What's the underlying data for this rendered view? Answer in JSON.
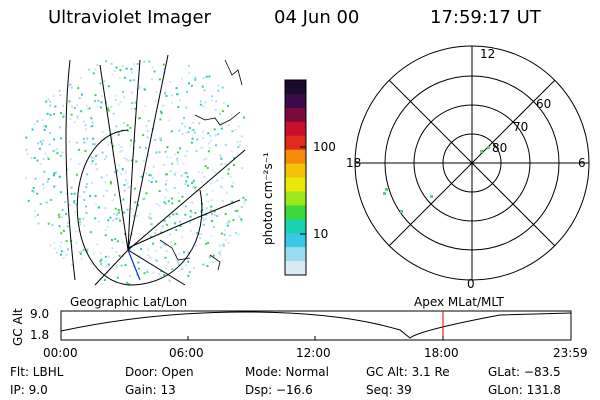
{
  "header": {
    "title": "Ultraviolet Imager",
    "date": "04 Jun 00",
    "time": "17:59:17 UT"
  },
  "colorbar": {
    "unit_label": "photon cm⁻²s⁻¹",
    "ticks": [
      "100",
      "10"
    ],
    "colors": [
      "#1a0a2e",
      "#3b0a4a",
      "#7a0a3a",
      "#c8102e",
      "#e02a1a",
      "#f58a0a",
      "#f5c20a",
      "#e8e80a",
      "#9ce81a",
      "#3ed83a",
      "#1ad2b0",
      "#3ac8e8",
      "#9cdcf0",
      "#d8ecf4"
    ]
  },
  "left_panel": {
    "label": "Geographic Lat/Lon"
  },
  "polar_plot": {
    "label": "Apex MLat/MLT",
    "mlt_labels": [
      "12",
      "18",
      "6",
      "0"
    ],
    "lat_labels": [
      "60",
      "70",
      "80"
    ]
  },
  "altitude_strip": {
    "axis_label": "GC Alt",
    "y_ticks": [
      "9.0",
      "1.8"
    ],
    "x_ticks": [
      "00:00",
      "06:00",
      "12:00",
      "18:00",
      "23:59"
    ],
    "marker_color": "#e00000"
  },
  "info": {
    "flt": "Flt:  LBHL",
    "ip": "IP:  9.0",
    "door": "Door:  Open",
    "gain": "Gain:  13",
    "mode": "Mode:  Normal",
    "dsp": "Dsp:   −16.6",
    "gcalt": "GC Alt:  3.1 Re",
    "seq": "Seq:  39",
    "glat": "GLat:  −83.5",
    "glon": "GLon:  131.8"
  }
}
